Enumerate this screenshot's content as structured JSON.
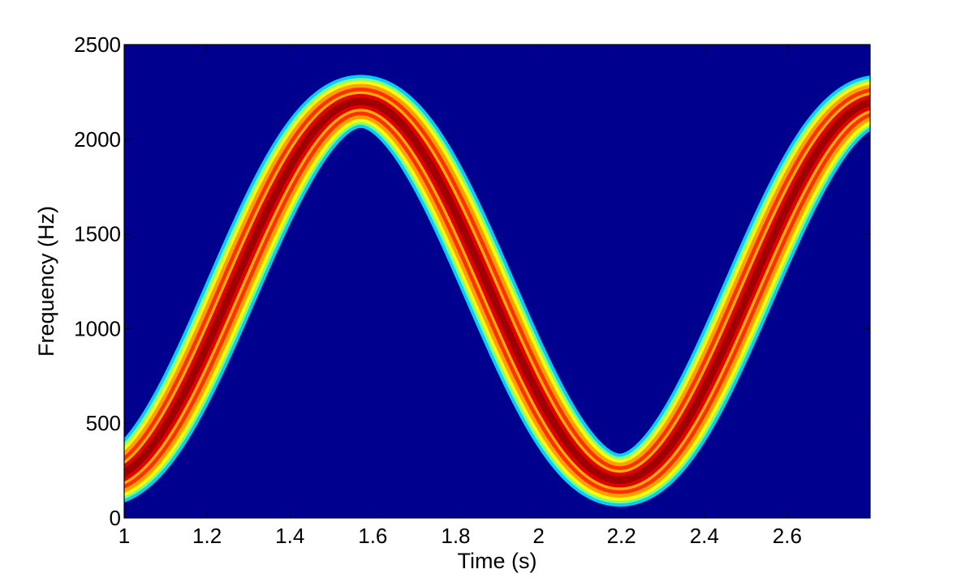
{
  "chart_data": {
    "type": "heatmap",
    "title": "",
    "xlabel": "Time (s)",
    "ylabel": "Frequency (Hz)",
    "xlim": [
      1,
      2.8
    ],
    "ylim": [
      0,
      2500
    ],
    "x_ticks": [
      1,
      1.2,
      1.4,
      1.6,
      1.8,
      2,
      2.2,
      2.4,
      2.6
    ],
    "x_tick_labels": [
      "1",
      "1.2",
      "1.4",
      "1.6",
      "1.8",
      "2",
      "2.2",
      "2.4",
      "2.6"
    ],
    "y_ticks": [
      0,
      500,
      1000,
      1500,
      2000,
      2500
    ],
    "y_tick_labels": [
      "0",
      "500",
      "1000",
      "1500",
      "2000",
      "2500"
    ],
    "grid": false,
    "colormap": "jet",
    "background_color": "#00008F",
    "ridge": {
      "description_points": [
        {
          "x": 1.0,
          "y": 250
        },
        {
          "x": 1.1,
          "y": 500
        },
        {
          "x": 1.2,
          "y": 850
        },
        {
          "x": 1.3,
          "y": 1420
        },
        {
          "x": 1.4,
          "y": 1860
        },
        {
          "x": 1.5,
          "y": 2120
        },
        {
          "x": 1.57,
          "y": 2200
        },
        {
          "x": 1.7,
          "y": 2020
        },
        {
          "x": 1.8,
          "y": 1620
        },
        {
          "x": 1.9,
          "y": 1060
        },
        {
          "x": 2.0,
          "y": 600
        },
        {
          "x": 2.1,
          "y": 300
        },
        {
          "x": 2.2,
          "y": 200
        },
        {
          "x": 2.3,
          "y": 400
        },
        {
          "x": 2.4,
          "y": 850
        },
        {
          "x": 2.5,
          "y": 1420
        },
        {
          "x": 2.6,
          "y": 1860
        },
        {
          "x": 2.7,
          "y": 2120
        },
        {
          "x": 2.8,
          "y": 2200
        }
      ],
      "center_hz": 1200,
      "amplitude_hz": 1000,
      "period_s": 1.25,
      "peak_time_s": 1.5708,
      "half_width_hz": 140
    }
  }
}
